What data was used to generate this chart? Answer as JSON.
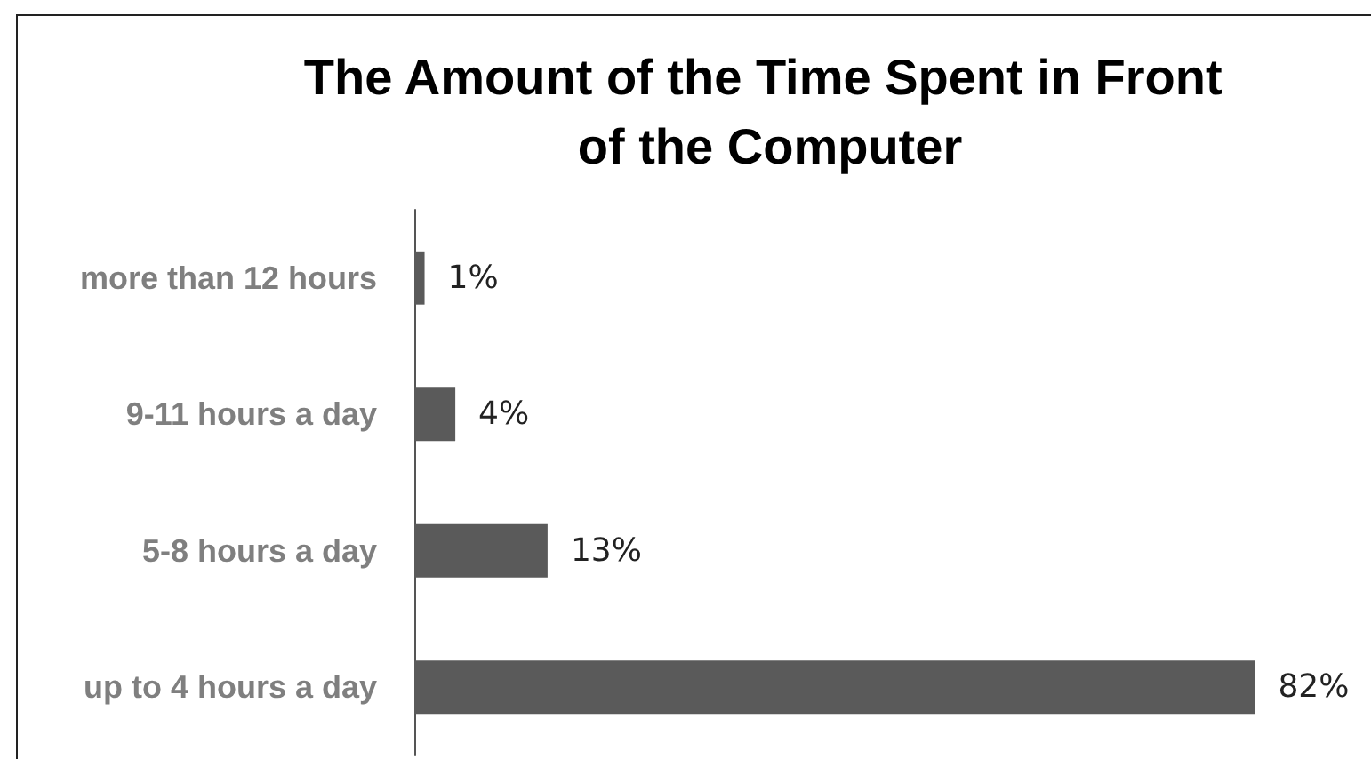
{
  "chart_data": {
    "type": "bar",
    "orientation": "horizontal",
    "title": "The Amount of the Time Spent in Front of the Computer",
    "categories": [
      "more than 12 hours",
      "9-11 hours a day",
      "5-8 hours a day",
      "up to 4 hours a day"
    ],
    "values": [
      1,
      4,
      13,
      82
    ],
    "color": "#5a5a5a",
    "value_labels": [
      "1%",
      "4%",
      "13%",
      "82%"
    ],
    "tick_labels": "y"
  }
}
